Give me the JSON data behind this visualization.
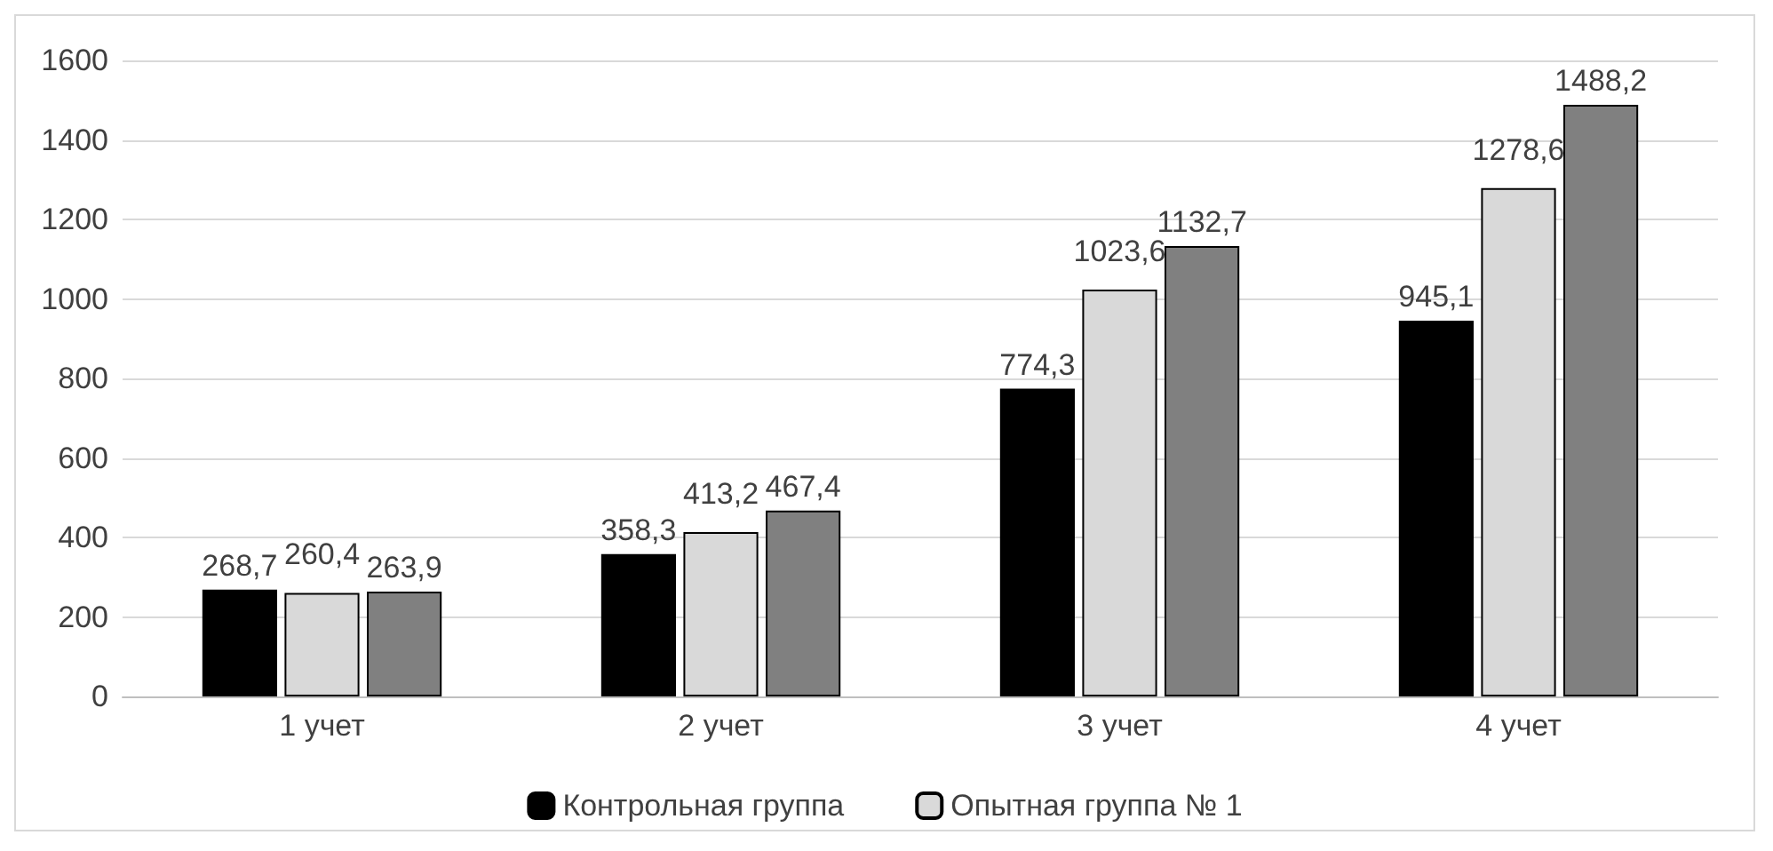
{
  "chart_data": {
    "type": "bar",
    "categories": [
      "1 учет",
      "2 учет",
      "3 учет",
      "4 учет"
    ],
    "series": [
      {
        "name": "Контрольная группа",
        "color": "#000000",
        "values": [
          268.7,
          358.3,
          774.3,
          945.1
        ],
        "value_labels": [
          "268,7",
          "358,3",
          "774,3",
          "945,1"
        ]
      },
      {
        "name": "Опытная группа № 1",
        "color": "#d9d9d9",
        "values": [
          260.4,
          413.2,
          1023.6,
          1278.6
        ],
        "value_labels": [
          "260,4",
          "413,2",
          "1023,6",
          "1278,6"
        ]
      },
      {
        "color": "#808080",
        "values": [
          263.9,
          467.4,
          1132.7,
          1488.2
        ],
        "value_labels": [
          "263,9",
          "467,4",
          "1132,7",
          "1488,2"
        ]
      }
    ],
    "ylim": [
      0,
      1600
    ],
    "yticks": [
      0,
      200,
      400,
      600,
      800,
      1000,
      1200,
      1400,
      1600
    ],
    "grid": "y",
    "legend": "bottom"
  }
}
